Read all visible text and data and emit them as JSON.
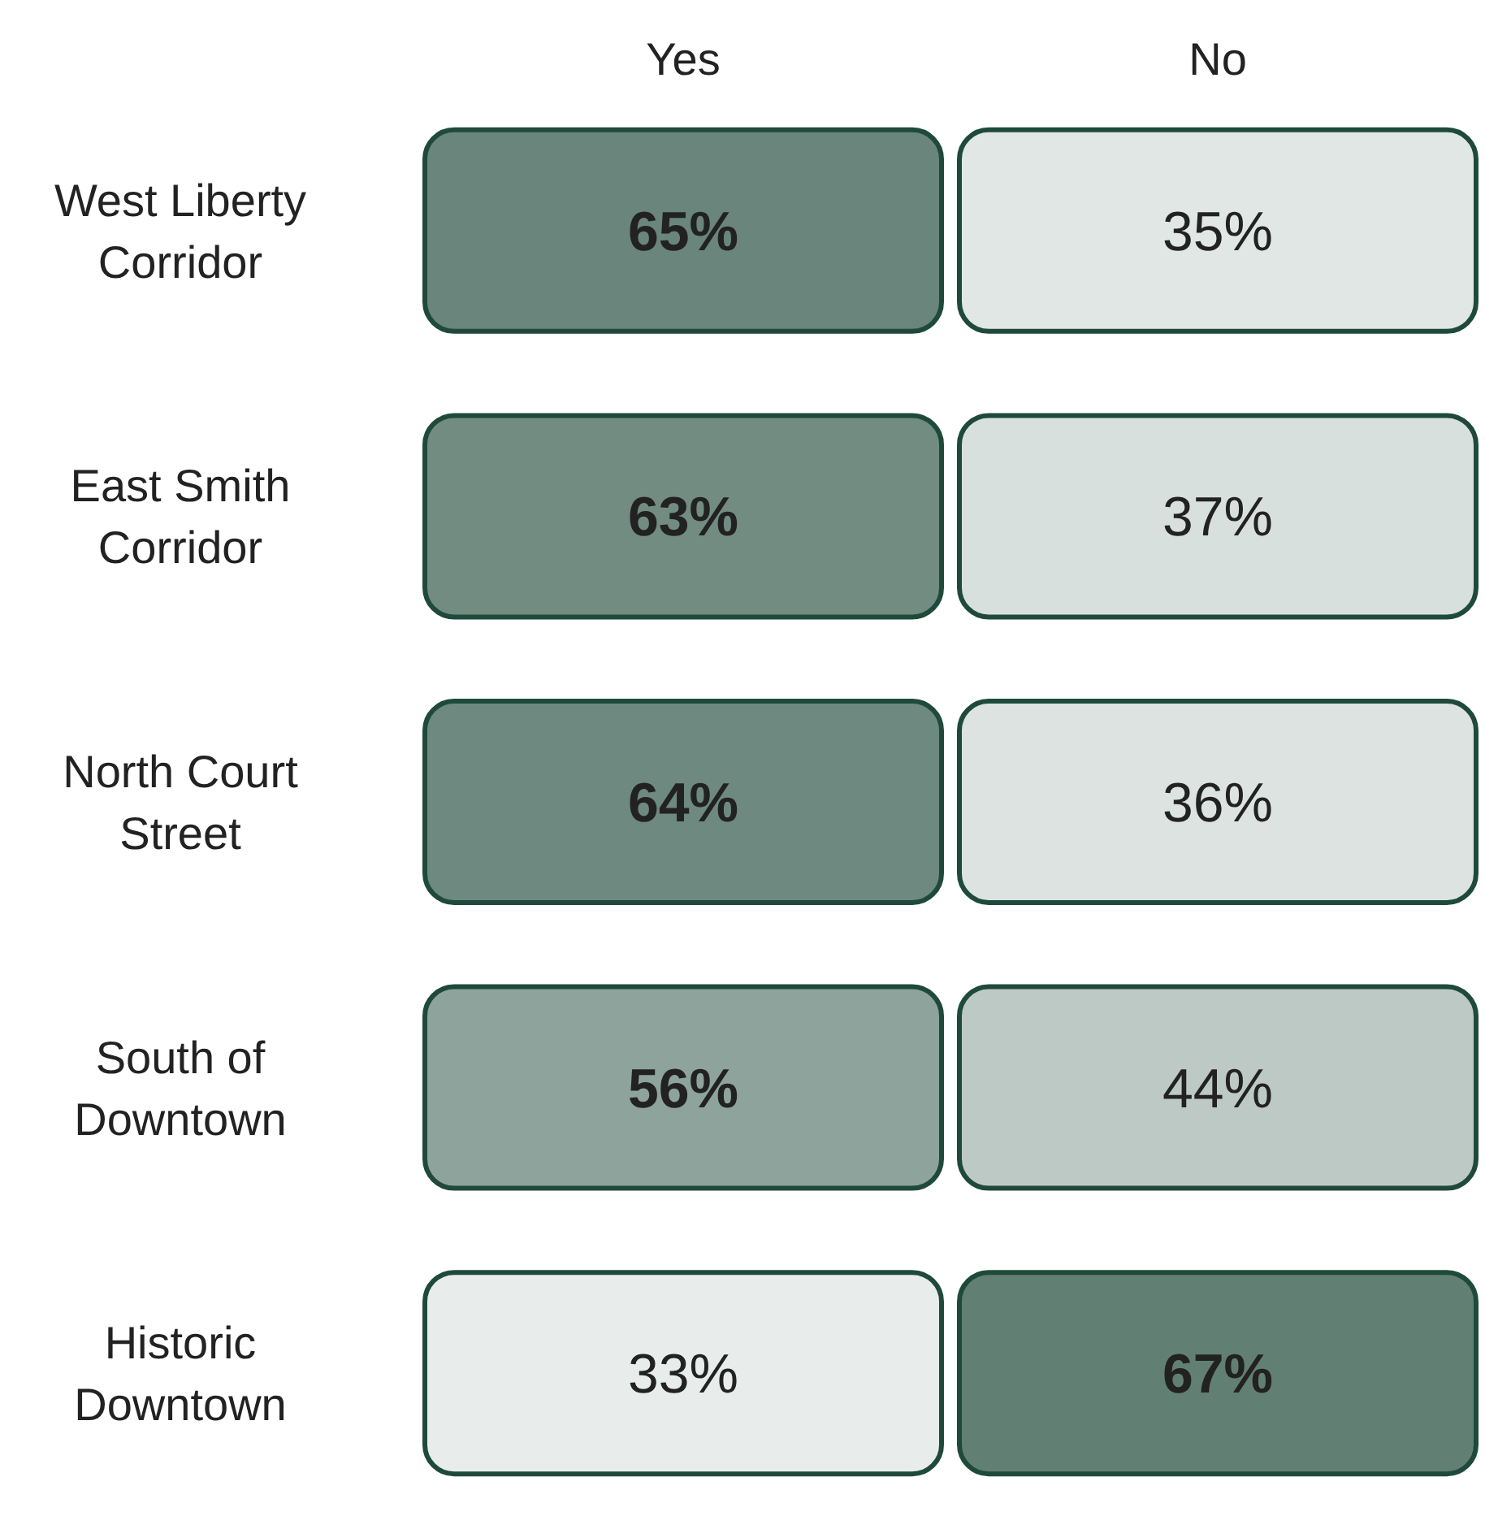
{
  "chart_data": {
    "type": "heatmap",
    "categories": [
      "Yes",
      "No"
    ],
    "y_categories": [
      "West Liberty Corridor",
      "East Smith Corridor",
      "North Court Street",
      "South of Downtown",
      "Historic Downtown"
    ],
    "cells": [
      [
        65,
        35
      ],
      [
        63,
        37
      ],
      [
        64,
        36
      ],
      [
        56,
        44
      ],
      [
        33,
        67
      ]
    ],
    "cell_labels": [
      [
        "65%",
        "35%"
      ],
      [
        "63%",
        "37%"
      ],
      [
        "64%",
        "36%"
      ],
      [
        "56%",
        "44%"
      ],
      [
        "33%",
        "67%"
      ]
    ]
  }
}
